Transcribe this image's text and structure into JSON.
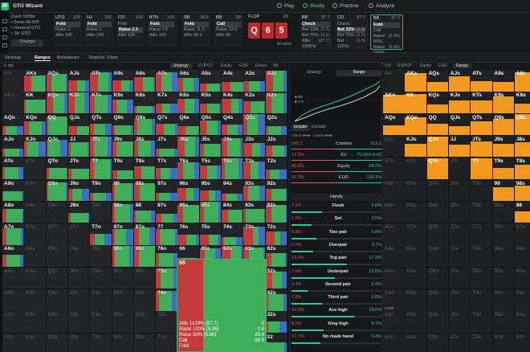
{
  "app": {
    "logo": "W",
    "title": "GTO Wizard"
  },
  "nav": [
    {
      "label": "Play",
      "icon": "play-icon",
      "active": false
    },
    {
      "label": "Study",
      "icon": "study-icon",
      "active": true
    },
    {
      "label": "Practice",
      "icon": "practice-icon",
      "active": false
    },
    {
      "label": "Analyze",
      "icon": "analyze-icon",
      "active": false
    }
  ],
  "game": {
    "lines": [
      "Cash 100bb",
      "• 6max NL500",
      "• General GTO",
      "• 3b: GTO"
    ],
    "change_label": "Change"
  },
  "positions": [
    {
      "name": "UTG",
      "stack": "100",
      "actions": [
        "Fold",
        "Raise 2",
        "Allin 100"
      ],
      "selected": 0
    },
    {
      "name": "HJ",
      "stack": "100",
      "actions": [
        "Fold",
        "Raise 2",
        "Allin 100"
      ],
      "selected": 0
    },
    {
      "name": "CO",
      "stack": "100",
      "actions": [
        "Fold",
        "Raise 2.3",
        "Allin 100"
      ],
      "selected": 1
    },
    {
      "name": "BTN",
      "stack": "100",
      "actions": [
        "Fold",
        "Raise 7.5",
        "Allin 100"
      ],
      "selected": 0
    },
    {
      "name": "SB",
      "stack": "99.5",
      "actions": [
        "Fold",
        "Raise 11.5",
        "Allin 99.5"
      ],
      "selected": 0
    },
    {
      "name": "BB",
      "stack": "99",
      "actions": [
        "Call",
        "Raise 13.5",
        "Allin 99"
      ],
      "selected": 0
    }
  ],
  "flop": {
    "label": "FLOP",
    "pot": "25",
    "cards": [
      "Q",
      "6",
      "5"
    ],
    "ai_solve": "AI solve"
  },
  "postflop": [
    {
      "name": "BB",
      "stack": "87.7",
      "actions": [
        [
          "Check",
          ""
        ],
        [
          "Bet 33%",
          "(1.1)"
        ],
        [
          "Bet 75%",
          "(1.1)"
        ],
        [
          "Allin 1998%",
          "(87.7)"
        ]
      ],
      "selected": 0
    },
    {
      "name": "CO",
      "stack": "87.7",
      "actions": [
        [
          "Check",
          ""
        ],
        [
          "Bet 33%",
          "(1.5)"
        ],
        [
          "Bet 75%",
          "(1.5)"
        ],
        [
          "Bet 125%",
          "(1.5)"
        ]
      ],
      "selected": 1
    },
    {
      "name": "BB",
      "stack": "87.7",
      "actions": [
        [
          "Fold",
          ""
        ],
        [
          "Call",
          ""
        ],
        [
          "Raise 50%",
          "(5.96)"
        ],
        [
          "Raise 100%",
          "(5.96)"
        ],
        [
          "Allin 1129%",
          "(87.7)"
        ]
      ],
      "selected": 0
    }
  ],
  "tabs": [
    "Strategy",
    "Ranges",
    "Breakdown",
    "Reports: Flops"
  ],
  "active_tab": "Ranges",
  "left_subtabs": [
    "Strategy",
    "EV/POT",
    "Equity",
    "EQR",
    "Range"
  ],
  "left_badge": "BB",
  "left_hint": "⊙ rdy",
  "right_subtabs": [
    "CO",
    "EV/POT",
    "Equity",
    "EQR",
    "Range"
  ],
  "mid": {
    "tabs": [
      "Strategy",
      "Range"
    ],
    "active_tab": "Range",
    "legend": [
      "■ BB",
      "■ CO"
    ],
    "include_tabs": [
      "Include",
      "Exclude"
    ],
    "offsuit_label": "offsuit",
    "suited_label": "suited",
    "stats": [
      {
        "left": "340.1",
        "label": "Combos",
        "right": "113.1",
        "color": "#e25563"
      },
      {
        "left": "17.3%",
        "label": "EV",
        "right": "75.38%  4.41",
        "color": "#e25563"
      },
      {
        "left": "45.8%",
        "label": "Equity",
        "right": "54.2%",
        "color": "#e25563"
      },
      {
        "left": "81.2%",
        "label": "EQR",
        "right": "139.1%",
        "color": "#e25563"
      }
    ],
    "hands_header": "Hands",
    "hands": [
      {
        "pct": "7.3%",
        "name": "Flush",
        "right": "6.8%",
        "fill": 0.34
      },
      {
        "pct": "1.6%",
        "name": "Set",
        "right": "3.5%",
        "fill": 0.22
      },
      {
        "pct": "5.8%",
        "name": "Two pair",
        "right": "5.8%",
        "fill": 0.28
      },
      {
        "pct": "0.0%",
        "name": "Overpair",
        "right": "3.7%",
        "fill": 0.24
      },
      {
        "pct": "13.9%",
        "name": "Top pair",
        "right": "17.2%",
        "fill": 0.62
      },
      {
        "pct": "7.6%",
        "name": "Underpair",
        "right": "12.0%",
        "fill": 0.48
      },
      {
        "pct": "2.4%",
        "name": "Second pair",
        "right": "2.4%",
        "fill": 0.18
      },
      {
        "pct": "7.8%",
        "name": "Third pair",
        "right": "6.8%",
        "fill": 0.34
      },
      {
        "pct": "14.0%",
        "name": "Ace high",
        "right": "19.5%",
        "fill": 0.7
      },
      {
        "pct": "5.5%",
        "name": "King high",
        "right": "8.7%",
        "fill": 0.36
      },
      {
        "pct": "17.7%",
        "name": "No made hand",
        "right": "6.4%",
        "fill": 0.32
      }
    ]
  },
  "grid": {
    "ranks": [
      "A",
      "K",
      "Q",
      "J",
      "T",
      "9",
      "8",
      "7",
      "6",
      "5",
      "4",
      "3",
      "2"
    ],
    "colors": {
      "raise": "#c33a3a",
      "call": "#3eae5a",
      "fold": "#3a6fc4",
      "allin": "#8b1f2e"
    }
  },
  "tooltip": {
    "hand": "66",
    "rows": [
      {
        "label": "Allin 1129% (87.7)",
        "value": "0"
      },
      {
        "label": "Raise 100% (5.96)",
        "value": "0.8"
      },
      {
        "label": "Raise 50% (5.96)",
        "value": "29.4"
      },
      {
        "label": "Call",
        "value": "68.9"
      },
      {
        "label": "Fold",
        "value": ""
      }
    ]
  },
  "right_grid": {
    "small_value": "0.002"
  }
}
